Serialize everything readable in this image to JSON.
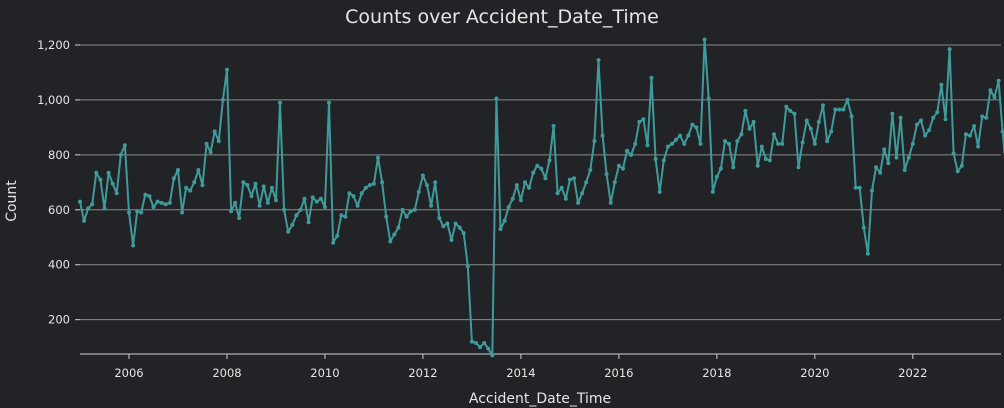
{
  "colors": {
    "background": "#222326",
    "series": "#3f9b9b",
    "text": "#e6e6e6",
    "grid": "#8a8a8a"
  },
  "chart_data": {
    "type": "line",
    "title": "Counts over Accident_Date_Time",
    "xlabel": "Accident_Date_Time",
    "ylabel": "Count",
    "x_start": "2005-01",
    "x_end": "2023-10",
    "xlim": [
      2005.0,
      2023.8
    ],
    "ylim": [
      75,
      1240
    ],
    "x_ticks": [
      {
        "value": 2006,
        "label": "2006"
      },
      {
        "value": 2008,
        "label": "2008"
      },
      {
        "value": 2010,
        "label": "2010"
      },
      {
        "value": 2012,
        "label": "2012"
      },
      {
        "value": 2014,
        "label": "2014"
      },
      {
        "value": 2016,
        "label": "2016"
      },
      {
        "value": 2018,
        "label": "2018"
      },
      {
        "value": 2020,
        "label": "2020"
      },
      {
        "value": 2022,
        "label": "2022"
      }
    ],
    "y_ticks": [
      {
        "value": 200,
        "label": "200"
      },
      {
        "value": 400,
        "label": "400"
      },
      {
        "value": 600,
        "label": "600"
      },
      {
        "value": 800,
        "label": "800"
      },
      {
        "value": 1000,
        "label": "1,000"
      },
      {
        "value": 1200,
        "label": "1,200"
      }
    ],
    "grid": "horizontal",
    "legend": "none",
    "series": [
      {
        "values": [
          630,
          560,
          605,
          620,
          735,
          710,
          605,
          735,
          695,
          660,
          800,
          835,
          590,
          470,
          595,
          590,
          655,
          650,
          610,
          630,
          625,
          620,
          625,
          715,
          745,
          590,
          680,
          670,
          700,
          745,
          690,
          840,
          810,
          885,
          850,
          1000,
          1110,
          595,
          625,
          570,
          700,
          690,
          650,
          695,
          615,
          685,
          625,
          680,
          635,
          990,
          600,
          520,
          545,
          580,
          600,
          640,
          555,
          645,
          630,
          640,
          610,
          990,
          480,
          505,
          580,
          575,
          660,
          650,
          615,
          660,
          680,
          690,
          695,
          790,
          700,
          575,
          485,
          510,
          535,
          600,
          575,
          595,
          600,
          665,
          725,
          690,
          615,
          700,
          570,
          540,
          550,
          490,
          550,
          535,
          515,
          395,
          120,
          115,
          100,
          115,
          95,
          70,
          1005,
          530,
          560,
          610,
          640,
          690,
          635,
          700,
          680,
          735,
          760,
          750,
          715,
          780,
          905,
          660,
          680,
          640,
          710,
          715,
          625,
          660,
          700,
          745,
          850,
          1145,
          870,
          730,
          625,
          700,
          760,
          750,
          815,
          800,
          840,
          920,
          930,
          835,
          1080,
          785,
          665,
          780,
          830,
          840,
          855,
          870,
          840,
          870,
          910,
          900,
          840,
          1220,
          1005,
          665,
          720,
          750,
          850,
          840,
          755,
          850,
          875,
          960,
          895,
          920,
          760,
          830,
          785,
          780,
          875,
          840,
          840,
          975,
          960,
          950,
          755,
          845,
          925,
          895,
          840,
          920,
          980,
          850,
          885,
          965,
          965,
          965,
          1000,
          940,
          680,
          680,
          535,
          440,
          670,
          755,
          735,
          820,
          770,
          950,
          790,
          935,
          745,
          790,
          840,
          910,
          925,
          870,
          890,
          935,
          955,
          1055,
          930,
          1185,
          805,
          740,
          760,
          875,
          870,
          905,
          830,
          940,
          935,
          1035,
          1010,
          1070,
          885,
          715,
          900,
          840,
          960,
          880,
          875,
          935,
          620
        ]
      }
    ]
  }
}
